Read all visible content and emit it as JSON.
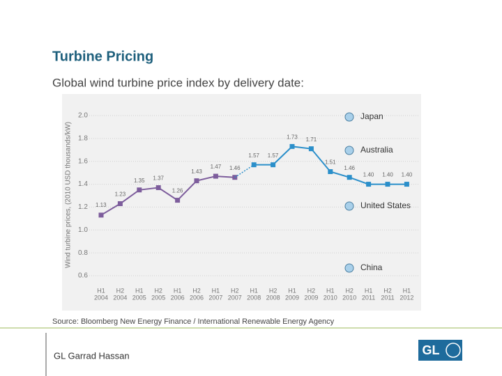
{
  "header": {
    "title": "Turbine Pricing",
    "subtitle": "Global wind turbine price index by delivery date:"
  },
  "chart_data": {
    "type": "line",
    "y_label": "Wind turbine prices, (2010 USD thousands/kW)",
    "categories": [
      [
        "H1",
        "2004"
      ],
      [
        "H2",
        "2004"
      ],
      [
        "H1",
        "2005"
      ],
      [
        "H2",
        "2005"
      ],
      [
        "H1",
        "2006"
      ],
      [
        "H2",
        "2006"
      ],
      [
        "H1",
        "2007"
      ],
      [
        "H2",
        "2007"
      ],
      [
        "H1",
        "2008"
      ],
      [
        "H2",
        "2008"
      ],
      [
        "H1",
        "2009"
      ],
      [
        "H2",
        "2009"
      ],
      [
        "H1",
        "2010"
      ],
      [
        "H2",
        "2010"
      ],
      [
        "H1",
        "2011"
      ],
      [
        "H2",
        "2011"
      ],
      [
        "H1",
        "2012"
      ]
    ],
    "series": [
      {
        "color": "#7d5d9c",
        "values": [
          1.13,
          1.23,
          1.35,
          1.37,
          1.26,
          1.43,
          1.47,
          1.46,
          null,
          null,
          null,
          null,
          null,
          null,
          null,
          null,
          null
        ]
      },
      {
        "color": "#2b8fca",
        "values": [
          null,
          null,
          null,
          null,
          null,
          null,
          null,
          null,
          1.57,
          1.57,
          1.73,
          1.71,
          1.51,
          1.46,
          1.4,
          1.4,
          1.4
        ],
        "value_labels": [
          null,
          null,
          null,
          null,
          null,
          null,
          null,
          null,
          "1.57",
          "1.57",
          "1.73",
          "1.71",
          "1.51",
          "1.46",
          "1.40",
          "1.40",
          "1.40"
        ]
      }
    ],
    "ylim": [
      0.6,
      2.0
    ],
    "yticks": [
      {
        "value": 2,
        "label": "2.0"
      },
      1.8,
      1.6,
      1.4,
      1.2,
      {
        "value": 1,
        "label": "1.0"
      },
      0.8,
      0.6
    ],
    "grid": true,
    "annotations": [
      "Japan",
      "Australia",
      "United States",
      "China"
    ]
  },
  "source": "Source: Bloomberg New Energy Finance / International Renewable Energy Agency",
  "footer": {
    "company": "GL Garrad Hassan",
    "logo": "GL"
  }
}
